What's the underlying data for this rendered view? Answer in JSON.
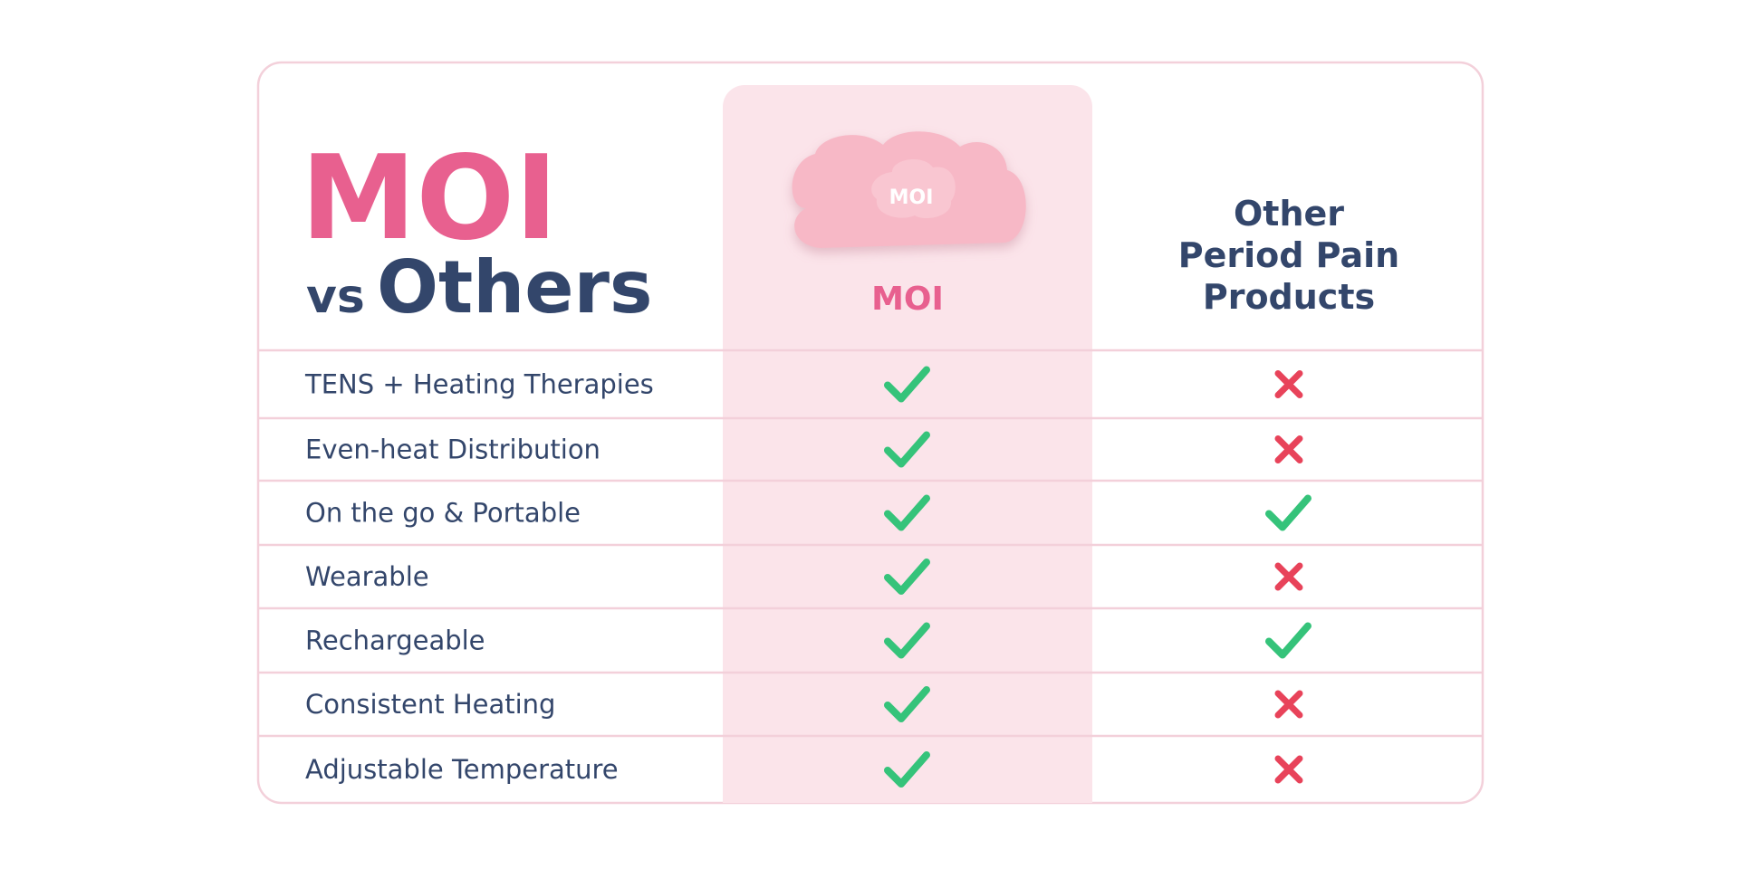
{
  "title": {
    "brand": "MOI",
    "vs": "vs",
    "others": "Others"
  },
  "device_label": "MOI",
  "columns": {
    "moi": "MOI",
    "others": [
      "Other",
      "Period Pain",
      "Products"
    ]
  },
  "rows": [
    {
      "feature": "TENS + Heating Therapies",
      "moi": true,
      "others": false
    },
    {
      "feature": "Even-heat Distribution",
      "moi": true,
      "others": false
    },
    {
      "feature": "On the go & Portable",
      "moi": true,
      "others": true
    },
    {
      "feature": "Wearable",
      "moi": true,
      "others": false
    },
    {
      "feature": "Rechargeable",
      "moi": true,
      "others": true
    },
    {
      "feature": "Consistent Heating",
      "moi": true,
      "others": false
    },
    {
      "feature": "Adjustable Temperature",
      "moi": true,
      "others": false
    }
  ]
}
